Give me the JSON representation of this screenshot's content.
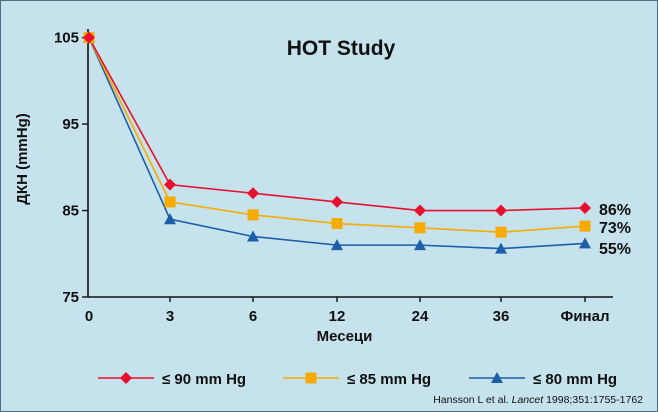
{
  "chart_data": {
    "type": "line",
    "title": "HOT Study",
    "xlabel": "Месеци",
    "ylabel": "ДКН (mmHg)",
    "categories": [
      "0",
      "3",
      "6",
      "12",
      "24",
      "36",
      "Финал"
    ],
    "yticks": [
      "75",
      "85",
      "95",
      "105"
    ],
    "ylim": [
      75,
      106
    ],
    "grid": false,
    "legend_position": "bottom",
    "series": [
      {
        "name": "≤ 90 mm Hg",
        "values": [
          105,
          88,
          87,
          86,
          85,
          85,
          85.3
        ],
        "color": "#e8112d",
        "marker": "diamond",
        "end_label": "86%"
      },
      {
        "name": "≤ 85 mm Hg",
        "values": [
          105,
          86,
          84.5,
          83.5,
          83,
          82.5,
          83.2
        ],
        "color": "#f6ab00",
        "marker": "square",
        "end_label": "73%"
      },
      {
        "name": "≤ 80 mm Hg",
        "values": [
          105,
          84,
          82,
          81,
          81,
          80.6,
          81.2
        ],
        "color": "#1c5ea8",
        "marker": "triangle",
        "end_label": "55%"
      }
    ]
  },
  "citation": {
    "authors": "Hansson L et al. ",
    "journal": "Lancet",
    "ref": " 1998;351:1755-1762"
  }
}
